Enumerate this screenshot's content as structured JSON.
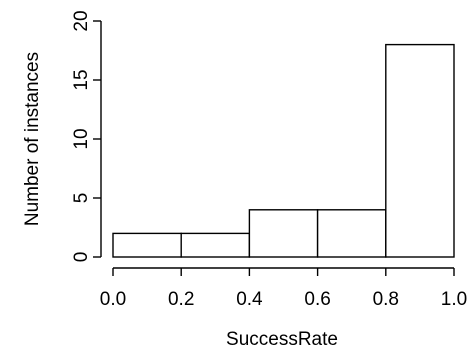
{
  "chart_data": {
    "type": "histogram",
    "xlabel": "SuccessRate",
    "ylabel": "Number of instances",
    "bins": [
      {
        "from": 0.0,
        "to": 0.2,
        "count": 2
      },
      {
        "from": 0.2,
        "to": 0.4,
        "count": 2
      },
      {
        "from": 0.4,
        "to": 0.6,
        "count": 4
      },
      {
        "from": 0.6,
        "to": 0.8,
        "count": 4
      },
      {
        "from": 0.8,
        "to": 1.0,
        "count": 18
      }
    ],
    "xlim": [
      0,
      1
    ],
    "ylim": [
      0,
      20
    ],
    "x_ticks": [
      "0.0",
      "0.2",
      "0.4",
      "0.6",
      "0.8",
      "1.0"
    ],
    "y_ticks": [
      "0",
      "5",
      "10",
      "15",
      "20"
    ],
    "grid": false,
    "legend": "none"
  }
}
